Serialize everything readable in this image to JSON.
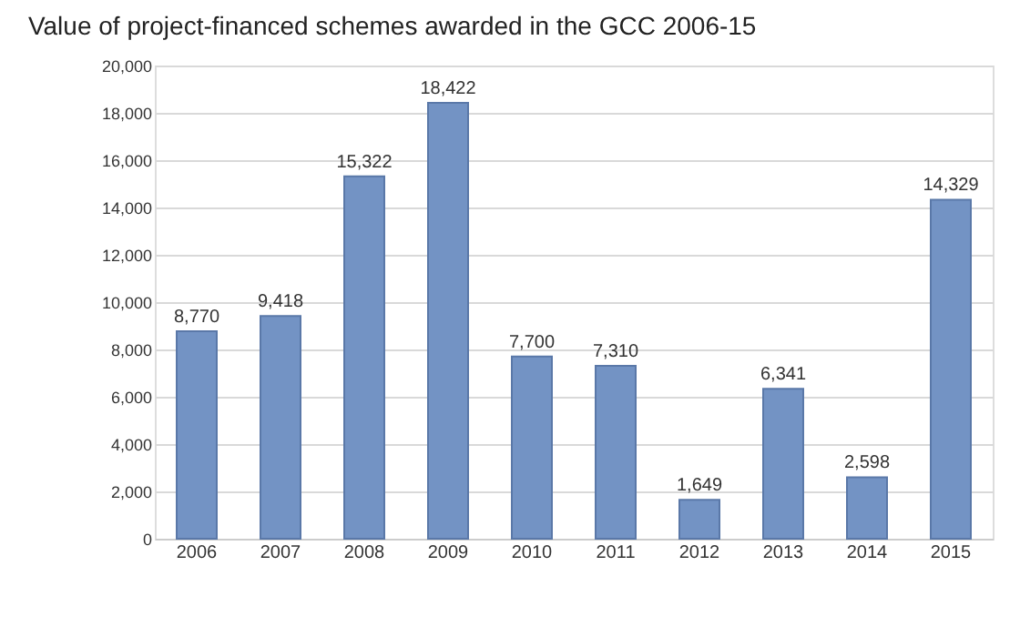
{
  "chart_data": {
    "type": "bar",
    "title": "Value of project-financed schemes awarded in the GCC 2006-15",
    "categories": [
      "2006",
      "2007",
      "2008",
      "2009",
      "2010",
      "2011",
      "2012",
      "2013",
      "2014",
      "2015"
    ],
    "values": [
      8770,
      9418,
      15322,
      18422,
      7700,
      7310,
      1649,
      6341,
      2598,
      14329
    ],
    "value_labels": [
      "8,770",
      "9,418",
      "15,322",
      "18,422",
      "7,700",
      "7,310",
      "1,649",
      "6,341",
      "2,598",
      "14,329"
    ],
    "color": "#7393c4",
    "ylim": [
      0,
      20000
    ],
    "yticks": [
      {
        "value": 0,
        "label": "0"
      },
      {
        "value": 2000,
        "label": "2,000"
      },
      {
        "value": 4000,
        "label": "4,000"
      },
      {
        "value": 6000,
        "label": "6,000"
      },
      {
        "value": 8000,
        "label": "8,000"
      },
      {
        "value": 10000,
        "label": "10,000"
      },
      {
        "value": 12000,
        "label": "12,000"
      },
      {
        "value": 14000,
        "label": "14,000"
      },
      {
        "value": 16000,
        "label": "16,000"
      },
      {
        "value": 18000,
        "label": "18,000"
      },
      {
        "value": 20000,
        "label": "20,000"
      }
    ],
    "grid": "y"
  }
}
